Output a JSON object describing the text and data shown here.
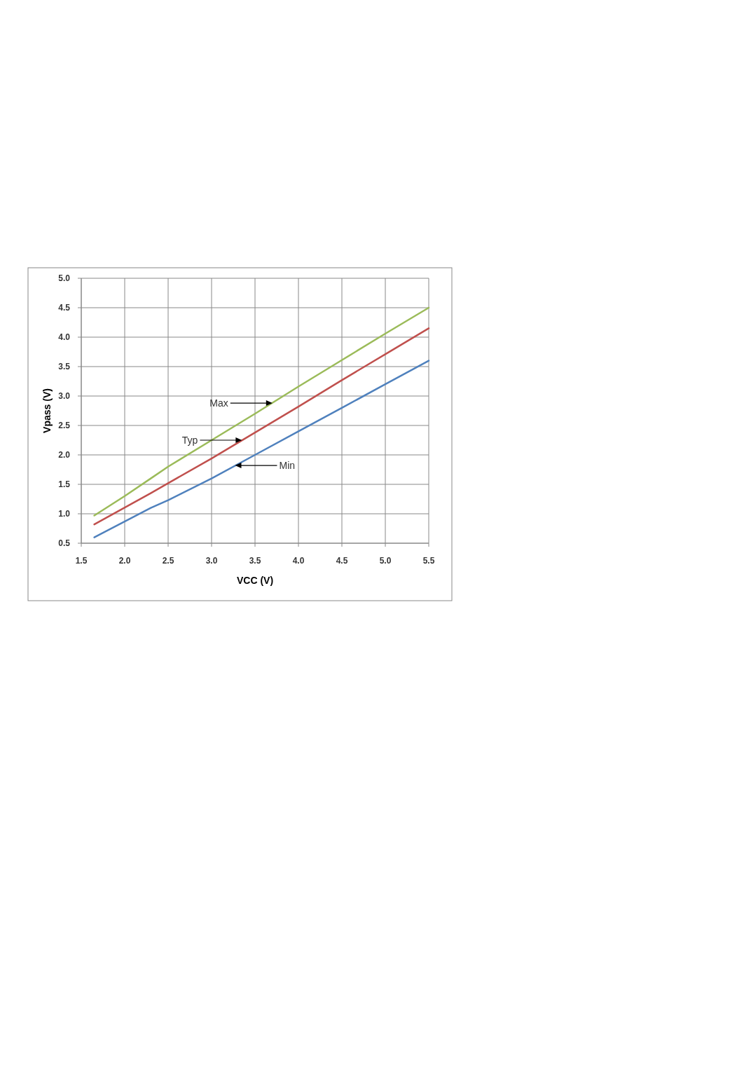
{
  "chart_data": {
    "type": "line",
    "xlabel": "VCC (V)",
    "ylabel": "Vpass (V)",
    "xlim": [
      1.5,
      5.5
    ],
    "xticks": [
      {
        "value": 1.5,
        "label": "1.5"
      },
      {
        "value": 2,
        "label": "2.0"
      },
      {
        "value": 2.5,
        "label": "2.5"
      },
      {
        "value": 3,
        "label": "3.0"
      },
      {
        "value": 3.5,
        "label": "3.5"
      },
      {
        "value": 4,
        "label": "4.0"
      },
      {
        "value": 4.5,
        "label": "4.5"
      },
      {
        "value": 5,
        "label": "5.0"
      },
      {
        "value": 5.5,
        "label": "5.5"
      }
    ],
    "ylim": [
      0.5,
      5
    ],
    "yticks": [
      {
        "value": 0.5,
        "label": "0.5"
      },
      {
        "value": 1,
        "label": "1.0"
      },
      {
        "value": 1.5,
        "label": "1.5"
      },
      {
        "value": 2,
        "label": "2.0"
      },
      {
        "value": 2.5,
        "label": "2.5"
      },
      {
        "value": 3,
        "label": "3.0"
      },
      {
        "value": 3.5,
        "label": "3.5"
      },
      {
        "value": 4,
        "label": "4.0"
      },
      {
        "value": 4.5,
        "label": "4.5"
      },
      {
        "value": 5,
        "label": "5.0"
      }
    ],
    "grid": true,
    "marker": "none",
    "line_style": "solid",
    "series": [
      {
        "color": "#9bbb59",
        "x": [
          1.65,
          2.0,
          2.3,
          2.5,
          3.0,
          3.5,
          4.0,
          4.5,
          5.0,
          5.5
        ],
        "values": [
          0.97,
          1.3,
          1.6,
          1.8,
          2.25,
          2.7,
          3.16,
          3.61,
          4.06,
          4.5
        ]
      },
      {
        "color": "#c0504d",
        "x": [
          1.65,
          2.3,
          2.5,
          3.0,
          3.5,
          4.0,
          4.5,
          5.0,
          5.5
        ],
        "values": [
          0.82,
          1.35,
          1.52,
          1.94,
          2.38,
          2.82,
          3.27,
          3.71,
          4.15
        ]
      },
      {
        "color": "#4f81bd",
        "x": [
          1.65,
          2.3,
          2.5,
          3.0,
          3.5,
          4.0,
          4.5,
          5.0,
          5.5
        ],
        "values": [
          0.6,
          1.1,
          1.23,
          1.6,
          2.0,
          2.4,
          2.8,
          3.2,
          3.6
        ]
      }
    ],
    "annotations": [
      {
        "text": "Max",
        "x": 3.7,
        "y": 2.88
      },
      {
        "text": "Typ",
        "x": 3.35,
        "y": 2.25
      },
      {
        "text": "Min",
        "x": 3.27,
        "y": 1.82
      }
    ]
  }
}
